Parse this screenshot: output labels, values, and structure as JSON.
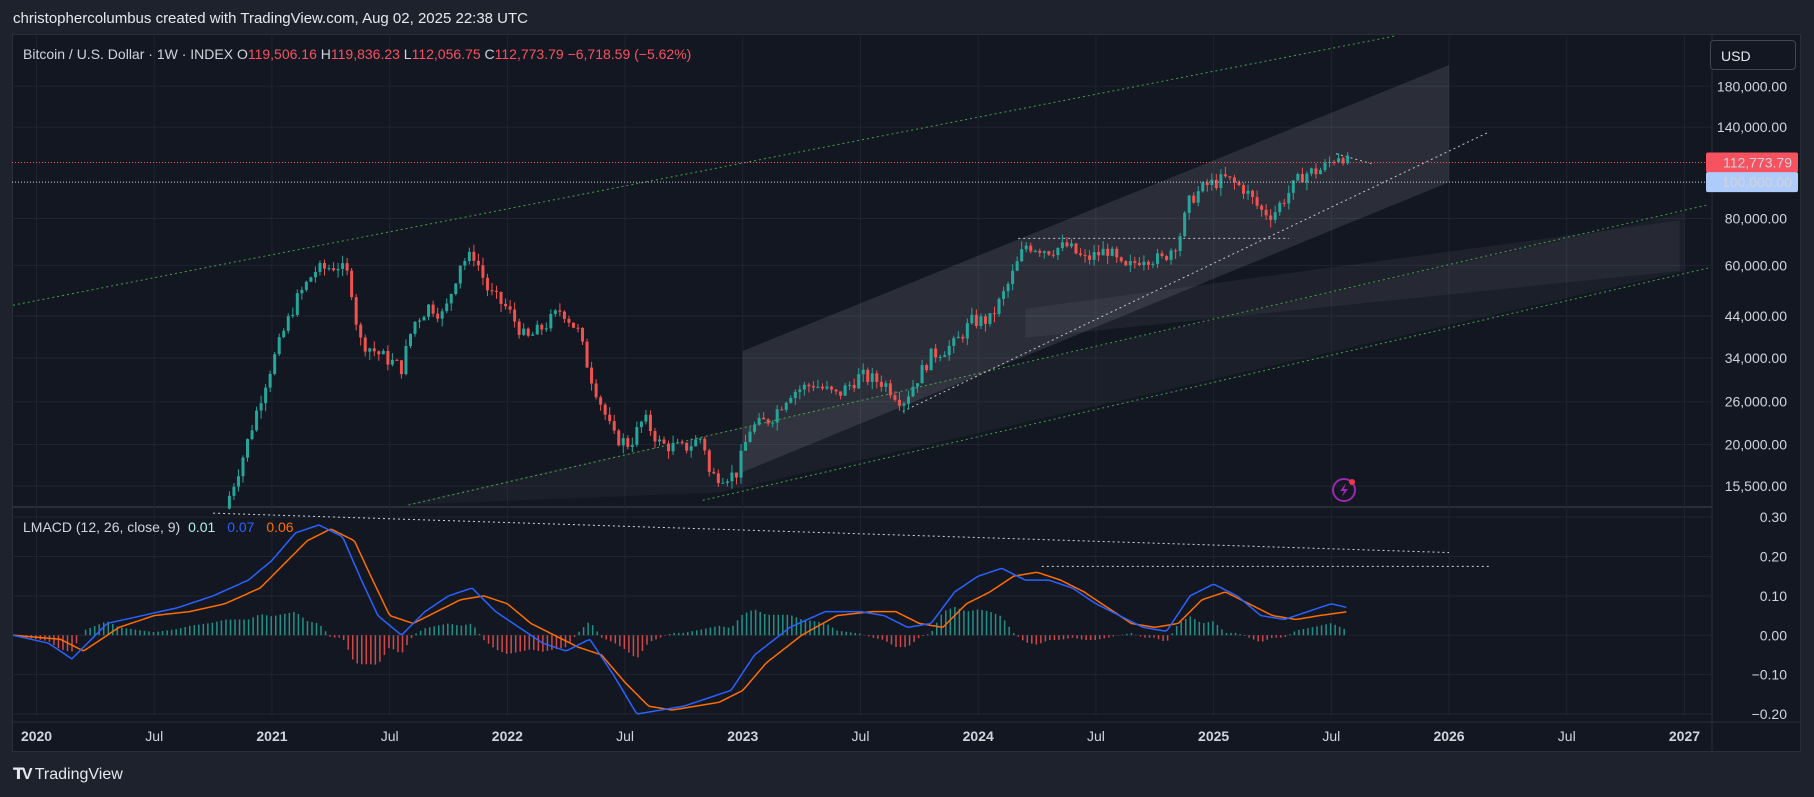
{
  "header": {
    "attribution": "christophercolumbus created with TradingView.com, Aug 02, 2025 22:38 UTC"
  },
  "legend": {
    "symbol": "Bitcoin / U.S. Dollar · 1W · INDEX",
    "o_label": "O",
    "o_value": "119,506.16",
    "h_label": "H",
    "h_value": "119,836.23",
    "l_label": "L",
    "l_value": "112,056.75",
    "c_label": "C",
    "c_value": "112,773.79",
    "change": "−6,718.59 (−5.62%)"
  },
  "lmacd_legend": {
    "name": "LMACD (12, 26, close, 9)",
    "hist": "0.01",
    "macd": "0.07",
    "signal": "0.06"
  },
  "currency_button": "USD",
  "footer": {
    "brand": "TradingView"
  },
  "colors": {
    "up": "#26a69a",
    "down": "#ef5350",
    "macd": "#2962ff",
    "signal": "#ff6d00",
    "price_tag": "#f7525f",
    "level_tag": "#aecbfa",
    "channel": "#4caf50"
  },
  "chart_data": [
    {
      "type": "candlestick",
      "title": "Bitcoin / U.S. Dollar · 1W · INDEX",
      "yscale": "log",
      "ylim": [
        13800,
        245000
      ],
      "xlim": [
        2019.9,
        2027.1
      ],
      "y_ticks": [
        "180,000.00",
        "140,000.00",
        "80,000.00",
        "60,000.00",
        "44,000.00",
        "34,000.00",
        "26,000.00",
        "20,000.00",
        "15,500.00"
      ],
      "y_tick_values": [
        180000,
        140000,
        80000,
        60000,
        44000,
        34000,
        26000,
        20000,
        15500
      ],
      "x_ticks": [
        "2020",
        "Jul",
        "2021",
        "Jul",
        "2022",
        "Jul",
        "2023",
        "Jul",
        "2024",
        "Jul",
        "2025",
        "Jul",
        "2026",
        "Jul",
        "2027"
      ],
      "x_tick_values": [
        2020,
        2020.5,
        2021,
        2021.5,
        2022,
        2022.5,
        2023,
        2023.5,
        2024,
        2024.5,
        2025,
        2025.5,
        2026,
        2026.5,
        2027
      ],
      "last_price_label": "112,773.79",
      "last_price": 112773.79,
      "level_label": "100,000.00",
      "level": 100000,
      "price_anchors": [
        [
          2020.8,
          13500
        ],
        [
          2020.87,
          18000
        ],
        [
          2020.97,
          29000
        ],
        [
          2021.05,
          40000
        ],
        [
          2021.1,
          48000
        ],
        [
          2021.18,
          58000
        ],
        [
          2021.28,
          60000
        ],
        [
          2021.33,
          56000
        ],
        [
          2021.37,
          38000
        ],
        [
          2021.45,
          35000
        ],
        [
          2021.55,
          32000
        ],
        [
          2021.6,
          42000
        ],
        [
          2021.67,
          47000
        ],
        [
          2021.73,
          44000
        ],
        [
          2021.8,
          61000
        ],
        [
          2021.86,
          64000
        ],
        [
          2021.92,
          51000
        ],
        [
          2022.0,
          46000
        ],
        [
          2022.08,
          38000
        ],
        [
          2022.17,
          42000
        ],
        [
          2022.23,
          46000
        ],
        [
          2022.3,
          40000
        ],
        [
          2022.35,
          31000
        ],
        [
          2022.45,
          21000
        ],
        [
          2022.52,
          20000
        ],
        [
          2022.58,
          23500
        ],
        [
          2022.65,
          20000
        ],
        [
          2022.75,
          19500
        ],
        [
          2022.83,
          21000
        ],
        [
          2022.86,
          16500
        ],
        [
          2022.97,
          16600
        ],
        [
          2023.03,
          22000
        ],
        [
          2023.12,
          23500
        ],
        [
          2023.2,
          27500
        ],
        [
          2023.3,
          29000
        ],
        [
          2023.4,
          27000
        ],
        [
          2023.5,
          30500
        ],
        [
          2023.6,
          29200
        ],
        [
          2023.68,
          26000
        ],
        [
          2023.8,
          34500
        ],
        [
          2023.9,
          37000
        ],
        [
          2023.97,
          42500
        ],
        [
          2024.05,
          43000
        ],
        [
          2024.12,
          52000
        ],
        [
          2024.2,
          68000
        ],
        [
          2024.3,
          66000
        ],
        [
          2024.38,
          67500
        ],
        [
          2024.45,
          62000
        ],
        [
          2024.55,
          66000
        ],
        [
          2024.62,
          58000
        ],
        [
          2024.7,
          63500
        ],
        [
          2024.78,
          62000
        ],
        [
          2024.85,
          70000
        ],
        [
          2024.9,
          90000
        ],
        [
          2024.97,
          98000
        ],
        [
          2025.05,
          102000
        ],
        [
          2025.13,
          96000
        ],
        [
          2025.2,
          84000
        ],
        [
          2025.25,
          82000
        ],
        [
          2025.32,
          94000
        ],
        [
          2025.38,
          105000
        ],
        [
          2025.46,
          108000
        ],
        [
          2025.52,
          117000
        ],
        [
          2025.54,
          119500
        ],
        [
          2025.57,
          112773.79
        ]
      ]
    },
    {
      "type": "line",
      "title": "LMACD (12, 26, close, 9)",
      "ylim": [
        -0.205,
        0.318
      ],
      "y_ticks": [
        "0.30",
        "0.20",
        "0.10",
        "0.00",
        "−0.10",
        "−0.20"
      ],
      "y_tick_values": [
        0.3,
        0.2,
        0.1,
        0.0,
        -0.1,
        -0.2
      ],
      "series": [
        {
          "name": "MACD",
          "x": [
            2019.9,
            2020.05,
            2020.15,
            2020.3,
            2020.45,
            2020.6,
            2020.75,
            2020.9,
            2021.0,
            2021.1,
            2021.2,
            2021.3,
            2021.38,
            2021.45,
            2021.55,
            2021.65,
            2021.75,
            2021.85,
            2021.95,
            2022.05,
            2022.15,
            2022.25,
            2022.35,
            2022.45,
            2022.55,
            2022.65,
            2022.75,
            2022.85,
            2022.95,
            2023.05,
            2023.2,
            2023.35,
            2023.5,
            2023.6,
            2023.7,
            2023.8,
            2023.9,
            2024.0,
            2024.1,
            2024.2,
            2024.3,
            2024.4,
            2024.5,
            2024.6,
            2024.7,
            2024.8,
            2024.9,
            2025.0,
            2025.1,
            2025.2,
            2025.3,
            2025.4,
            2025.5,
            2025.57
          ],
          "values": [
            0.0,
            -0.02,
            -0.06,
            0.03,
            0.05,
            0.07,
            0.1,
            0.14,
            0.19,
            0.26,
            0.28,
            0.25,
            0.14,
            0.05,
            0.0,
            0.06,
            0.1,
            0.12,
            0.06,
            0.02,
            -0.02,
            -0.04,
            -0.01,
            -0.1,
            -0.2,
            -0.19,
            -0.18,
            -0.16,
            -0.14,
            -0.05,
            0.02,
            0.06,
            0.06,
            0.05,
            0.02,
            0.03,
            0.11,
            0.15,
            0.17,
            0.14,
            0.14,
            0.12,
            0.08,
            0.05,
            0.02,
            0.01,
            0.1,
            0.13,
            0.1,
            0.05,
            0.04,
            0.06,
            0.08,
            0.07
          ]
        },
        {
          "name": "Signal",
          "x": [
            2019.9,
            2020.1,
            2020.2,
            2020.35,
            2020.5,
            2020.65,
            2020.8,
            2020.95,
            2021.05,
            2021.15,
            2021.25,
            2021.35,
            2021.42,
            2021.5,
            2021.6,
            2021.7,
            2021.8,
            2021.9,
            2022.0,
            2022.1,
            2022.2,
            2022.3,
            2022.4,
            2022.5,
            2022.6,
            2022.7,
            2022.8,
            2022.9,
            2023.0,
            2023.1,
            2023.25,
            2023.4,
            2023.55,
            2023.65,
            2023.75,
            2023.85,
            2023.95,
            2024.05,
            2024.15,
            2024.25,
            2024.35,
            2024.45,
            2024.55,
            2024.65,
            2024.75,
            2024.85,
            2024.95,
            2025.05,
            2025.15,
            2025.25,
            2025.35,
            2025.45,
            2025.57
          ],
          "values": [
            0.0,
            -0.01,
            -0.04,
            0.02,
            0.05,
            0.06,
            0.08,
            0.12,
            0.18,
            0.24,
            0.27,
            0.24,
            0.15,
            0.05,
            0.03,
            0.06,
            0.09,
            0.1,
            0.08,
            0.03,
            0.0,
            -0.03,
            -0.05,
            -0.12,
            -0.18,
            -0.19,
            -0.18,
            -0.17,
            -0.14,
            -0.07,
            0.0,
            0.05,
            0.06,
            0.06,
            0.03,
            0.02,
            0.08,
            0.11,
            0.15,
            0.16,
            0.14,
            0.11,
            0.07,
            0.03,
            0.02,
            0.03,
            0.09,
            0.11,
            0.08,
            0.05,
            0.04,
            0.05,
            0.06
          ]
        }
      ],
      "hist_label": "0.01",
      "macd_label": "0.07",
      "signal_label": "0.06"
    }
  ]
}
